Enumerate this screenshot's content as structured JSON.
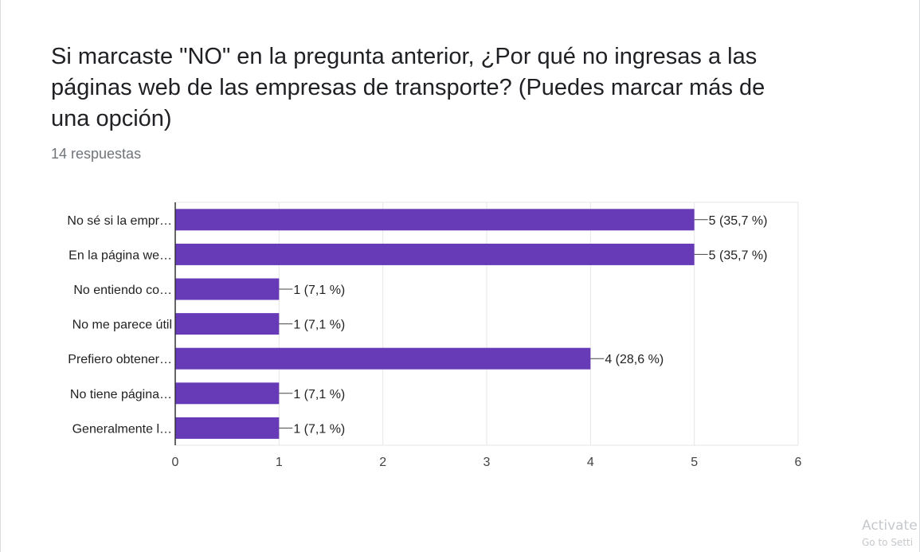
{
  "question": {
    "title": "Si marcaste \"NO\" en la pregunta anterior, ¿Por qué no ingresas a las\npáginas web de las empresas de transporte? (Puedes marcar más de\nuna opción)",
    "responses": "14 respuestas"
  },
  "watermark": {
    "title": "Activate",
    "subtitle": "Go to Setti"
  },
  "chart_data": {
    "type": "bar",
    "orientation": "horizontal",
    "categories": [
      "No sé si la empr…",
      "En la página we…",
      "No entiendo co…",
      "No me parece útil",
      "Prefiero obtener…",
      "No tiene página…",
      "Generalmente l…"
    ],
    "values": [
      5,
      5,
      1,
      1,
      4,
      1,
      1
    ],
    "data_labels": [
      "5 (35,7 %)",
      "5 (35,7 %)",
      "1 (7,1 %)",
      "1 (7,1 %)",
      "4 (28,6 %)",
      "1 (7,1 %)",
      "1 (7,1 %)"
    ],
    "xticks": [
      "0",
      "1",
      "2",
      "3",
      "4",
      "5",
      "6"
    ],
    "xlim": [
      0,
      6
    ],
    "grid": true,
    "bar_color": "#673ab7"
  }
}
